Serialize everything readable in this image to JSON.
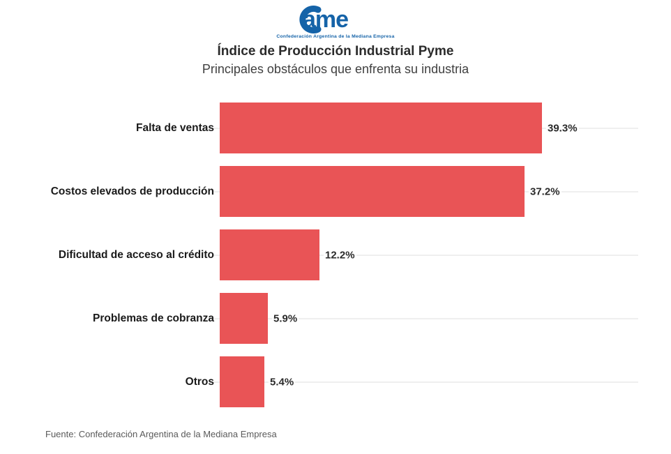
{
  "logo": {
    "text": "Came",
    "tagline": "Confederación Argentina de la Mediana Empresa",
    "color": "#1563A8"
  },
  "header": {
    "title": "Índice de Producción Industrial Pyme",
    "subtitle": "Principales obstáculos que enfrenta su industria"
  },
  "chart_data": {
    "type": "bar",
    "orientation": "horizontal",
    "title": "Índice de Producción Industrial Pyme",
    "subtitle": "Principales obstáculos que enfrenta su industria",
    "categories": [
      "Falta de ventas",
      "Costos elevados de producción",
      "Dificultad de acceso al crédito",
      "Problemas de cobranza",
      "Otros"
    ],
    "values": [
      39.3,
      37.2,
      12.2,
      5.9,
      5.4
    ],
    "value_labels": [
      "39.3%",
      "37.2%",
      "12.2%",
      "5.9%",
      "5.4%"
    ],
    "xlabel": "",
    "ylabel": "",
    "xlim": [
      0,
      51
    ],
    "grid": "horizontal line at each row center",
    "legend": "none",
    "bar_color": "#E95456",
    "gridline_color": "#efefef"
  },
  "footer": {
    "source": "Fuente: Confederación Argentina de la Mediana Empresa"
  }
}
